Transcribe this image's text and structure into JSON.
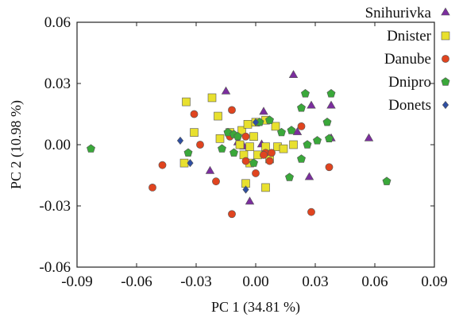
{
  "chart_data": {
    "type": "scatter",
    "title": "",
    "xlabel": "PC 1 (34.81 %)",
    "ylabel": "PC 2 (10.98 %)",
    "xlim": [
      -0.09,
      0.09
    ],
    "ylim": [
      -0.06,
      0.06
    ],
    "xticks": [
      -0.09,
      -0.06,
      -0.03,
      0.0,
      0.03,
      0.06,
      0.09
    ],
    "yticks": [
      -0.06,
      -0.03,
      0.0,
      0.03,
      0.06
    ],
    "xtick_labels": [
      "-0.09",
      "-0.06",
      "-0.03",
      "0.00",
      "0.03",
      "0.06",
      "0.09"
    ],
    "ytick_labels": [
      "-0.06",
      "-0.03",
      "0.00",
      "0.03",
      "0.06"
    ],
    "grid": false,
    "legend_position": "top-right",
    "series": [
      {
        "name": "Snihurivka",
        "marker": "triangle",
        "color": "#7b2d9e",
        "points": [
          [
            -0.015,
            0.026
          ],
          [
            0.019,
            0.034
          ],
          [
            0.004,
            0.016
          ],
          [
            0.028,
            0.019
          ],
          [
            0.038,
            0.019
          ],
          [
            0.057,
            0.003
          ],
          [
            0.038,
            0.003
          ],
          [
            0.021,
            0.006
          ],
          [
            0.003,
            0.0
          ],
          [
            -0.012,
            0.005
          ],
          [
            -0.009,
            0.001
          ],
          [
            -0.023,
            -0.013
          ],
          [
            0.027,
            -0.016
          ],
          [
            -0.003,
            -0.028
          ],
          [
            -0.006,
            -0.001
          ]
        ]
      },
      {
        "name": "Dnister",
        "marker": "square",
        "color": "#e8e02e",
        "points": [
          [
            -0.035,
            0.021
          ],
          [
            -0.022,
            0.023
          ],
          [
            -0.019,
            0.014
          ],
          [
            -0.031,
            0.006
          ],
          [
            -0.018,
            0.003
          ],
          [
            -0.013,
            0.006
          ],
          [
            -0.007,
            0.007
          ],
          [
            -0.004,
            0.01
          ],
          [
            0.0,
            0.011
          ],
          [
            0.005,
            0.012
          ],
          [
            0.01,
            0.009
          ],
          [
            -0.008,
            0.0
          ],
          [
            -0.003,
            -0.001
          ],
          [
            0.005,
            -0.001
          ],
          [
            0.011,
            -0.001
          ],
          [
            0.014,
            -0.002
          ],
          [
            0.019,
            0.0
          ],
          [
            -0.006,
            -0.005
          ],
          [
            0.001,
            -0.005
          ],
          [
            -0.003,
            -0.009
          ],
          [
            -0.036,
            -0.009
          ],
          [
            -0.005,
            -0.019
          ],
          [
            0.005,
            -0.021
          ],
          [
            0.007,
            -0.007
          ],
          [
            -0.001,
            0.004
          ]
        ]
      },
      {
        "name": "Danube",
        "marker": "circle",
        "color": "#e0441f",
        "points": [
          [
            -0.031,
            0.015
          ],
          [
            -0.012,
            0.017
          ],
          [
            0.023,
            0.009
          ],
          [
            -0.028,
            0.0
          ],
          [
            -0.013,
            0.004
          ],
          [
            -0.005,
            0.004
          ],
          [
            0.005,
            -0.004
          ],
          [
            0.008,
            -0.004
          ],
          [
            0.007,
            -0.008
          ],
          [
            0.004,
            -0.005
          ],
          [
            -0.005,
            -0.008
          ],
          [
            0.0,
            -0.014
          ],
          [
            -0.02,
            -0.018
          ],
          [
            -0.047,
            -0.01
          ],
          [
            -0.052,
            -0.021
          ],
          [
            -0.012,
            -0.034
          ],
          [
            0.028,
            -0.033
          ],
          [
            0.037,
            -0.011
          ]
        ]
      },
      {
        "name": "Dnipro",
        "marker": "pentagon",
        "color": "#3aa83a",
        "points": [
          [
            -0.083,
            -0.002
          ],
          [
            -0.034,
            -0.004
          ],
          [
            -0.014,
            0.006
          ],
          [
            -0.011,
            0.005
          ],
          [
            -0.009,
            0.004
          ],
          [
            -0.017,
            -0.002
          ],
          [
            -0.011,
            -0.004
          ],
          [
            0.002,
            0.011
          ],
          [
            0.007,
            0.012
          ],
          [
            0.013,
            0.006
          ],
          [
            0.018,
            0.007
          ],
          [
            0.023,
            0.018
          ],
          [
            0.025,
            0.025
          ],
          [
            0.036,
            0.011
          ],
          [
            0.038,
            0.025
          ],
          [
            0.031,
            0.002
          ],
          [
            0.026,
            0.0
          ],
          [
            0.037,
            0.003
          ],
          [
            0.023,
            -0.007
          ],
          [
            0.017,
            -0.016
          ],
          [
            0.066,
            -0.018
          ],
          [
            -0.001,
            -0.009
          ]
        ]
      },
      {
        "name": "Donets",
        "marker": "diamond",
        "color": "#2e4fa3",
        "points": [
          [
            -0.038,
            0.002
          ],
          [
            -0.033,
            -0.009
          ],
          [
            -0.005,
            -0.022
          ],
          [
            0.0,
            0.011
          ]
        ]
      }
    ]
  }
}
